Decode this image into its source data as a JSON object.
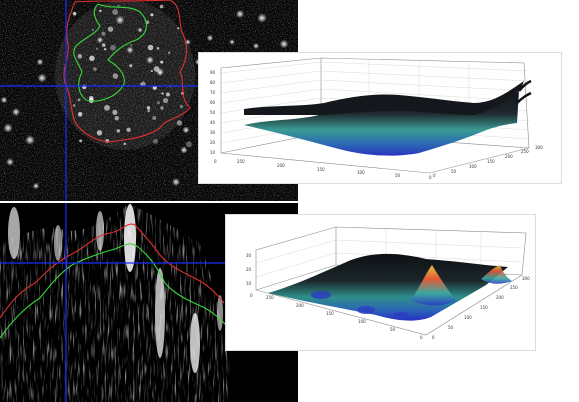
{
  "panels": {
    "top_image": {
      "name": "Cell field with crosshair and outlined regions"
    },
    "bottom_image": {
      "name": "Cross-section profile with traces"
    },
    "top_plot": {
      "z_ticks": [
        "90",
        "80",
        "70",
        "60",
        "50",
        "40",
        "30",
        "20",
        "10",
        "0"
      ],
      "x_ticks": [
        "250",
        "200",
        "150",
        "100",
        "50",
        "0"
      ],
      "y_ticks": [
        "0",
        "50",
        "100",
        "150",
        "200",
        "250",
        "300"
      ]
    },
    "bottom_plot": {
      "z_ticks": [
        "30",
        "20",
        "10",
        "0"
      ],
      "x_ticks": [
        "250",
        "200",
        "150",
        "100",
        "50",
        "0"
      ],
      "y_ticks": [
        "0",
        "50",
        "100",
        "150",
        "200",
        "250",
        "300"
      ]
    }
  },
  "colors": {
    "crosshair": "#1a2cff",
    "outline_red": "#e03030",
    "outline_green": "#39d639",
    "surface_dark": "#101418",
    "surface_teal": "#3aa0a0",
    "surface_blue": "#2b3cc8"
  }
}
